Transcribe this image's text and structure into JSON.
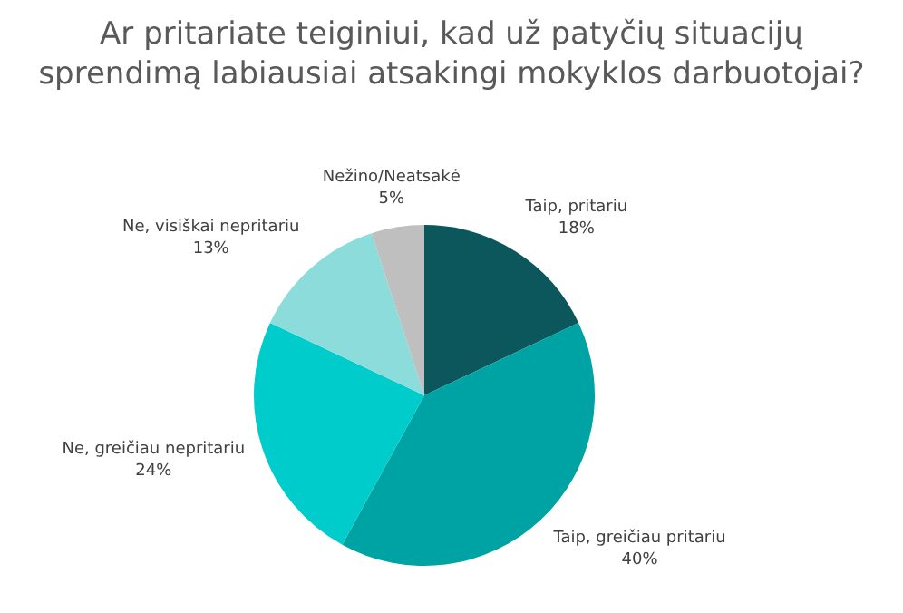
{
  "chart_data": {
    "type": "pie",
    "title": "Ar pritariate teiginiui, kad už patyčių situacijų sprendimą labiausiai atsakingi mokyklos darbuotojai?",
    "categories": [
      "Taip, pritariu",
      "Taip, greičiau pritariu",
      "Ne, greičiau nepritariu",
      "Ne, visiškai nepritariu",
      "Nežino/Neatsakė"
    ],
    "values": [
      18,
      40,
      24,
      13,
      5
    ],
    "value_labels": [
      "18%",
      "40%",
      "24%",
      "13%",
      "5%"
    ],
    "colors": [
      "#0b575b",
      "#00a3a4",
      "#00cccc",
      "#8cdcdc",
      "#bfbfbf"
    ],
    "legend": false
  }
}
